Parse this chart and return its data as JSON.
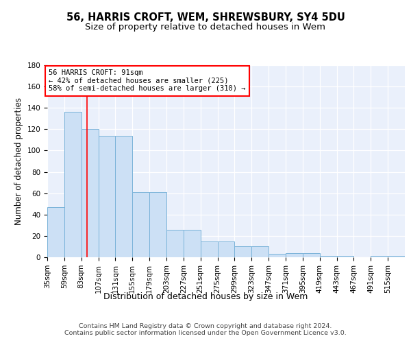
{
  "title1": "56, HARRIS CROFT, WEM, SHREWSBURY, SY4 5DU",
  "title2": "Size of property relative to detached houses in Wem",
  "xlabel": "Distribution of detached houses by size in Wem",
  "ylabel": "Number of detached properties",
  "bar_values": [
    47,
    136,
    120,
    114,
    114,
    61,
    61,
    26,
    26,
    15,
    15,
    10,
    10,
    3,
    4,
    4,
    1,
    1,
    0,
    1,
    1
  ],
  "bar_labels": [
    "35sqm",
    "59sqm",
    "83sqm",
    "107sqm",
    "131sqm",
    "155sqm",
    "179sqm",
    "203sqm",
    "227sqm",
    "251sqm",
    "275sqm",
    "299sqm",
    "323sqm",
    "347sqm",
    "371sqm",
    "395sqm",
    "419sqm",
    "443sqm",
    "467sqm",
    "491sqm",
    "515sqm"
  ],
  "bar_color": "#cce0f5",
  "bar_edge_color": "#7ab3d9",
  "red_line_x": 91,
  "annotation_line1": "56 HARRIS CROFT: 91sqm",
  "annotation_line2": "← 42% of detached houses are smaller (225)",
  "annotation_line3": "58% of semi-detached houses are larger (310) →",
  "annotation_box_color": "white",
  "annotation_box_edge": "red",
  "ylim": [
    0,
    180
  ],
  "yticks": [
    0,
    20,
    40,
    60,
    80,
    100,
    120,
    140,
    160,
    180
  ],
  "background_color": "#eaf0fb",
  "grid_color": "white",
  "footer_text": "Contains HM Land Registry data © Crown copyright and database right 2024.\nContains public sector information licensed under the Open Government Licence v3.0.",
  "title1_fontsize": 10.5,
  "title2_fontsize": 9.5,
  "xlabel_fontsize": 9,
  "ylabel_fontsize": 8.5,
  "tick_fontsize": 7.5
}
